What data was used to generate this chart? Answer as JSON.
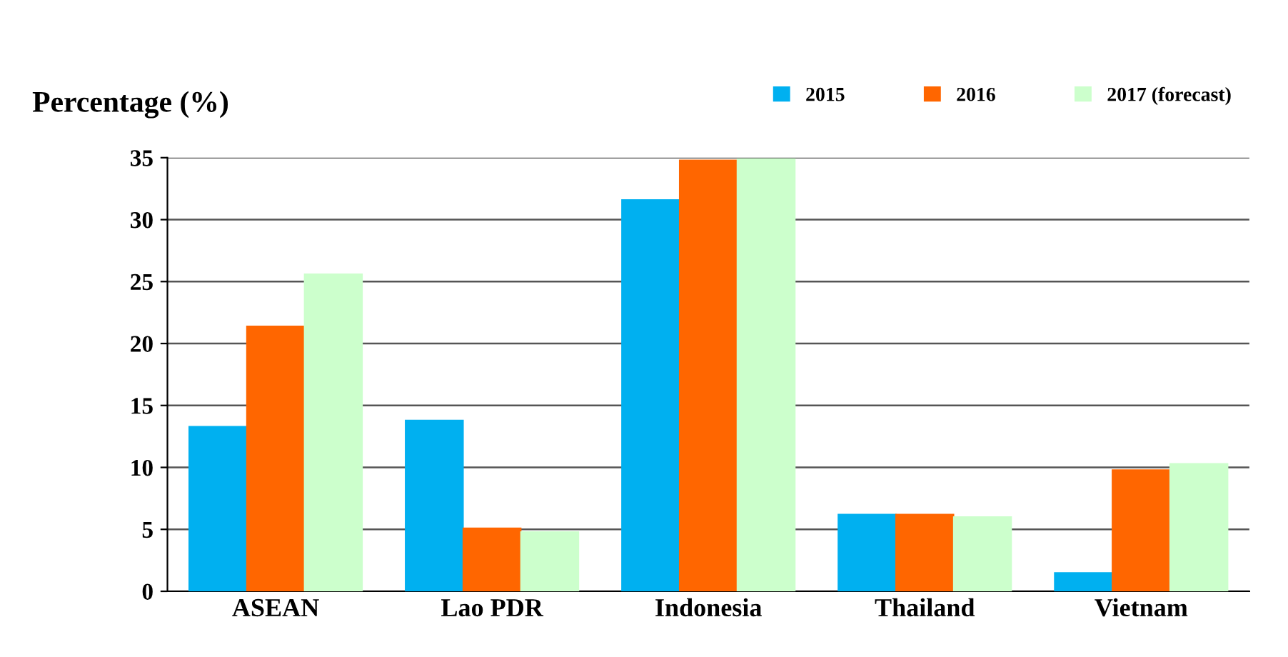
{
  "chart_data": {
    "type": "bar",
    "ylabel": "Percentage (%)",
    "categories": [
      "ASEAN",
      "Lao PDR",
      "Indonesia",
      "Thailand",
      "Vietnam"
    ],
    "series": [
      {
        "name": "2015",
        "color": "#00b0f0",
        "values": [
          13.3,
          13.8,
          31.6,
          6.2,
          1.5
        ]
      },
      {
        "name": "2016",
        "color": "#ff6600",
        "values": [
          21.4,
          5.1,
          34.8,
          6.2,
          9.8
        ]
      },
      {
        "name": "2017 (forecast)",
        "color": "#ccffcc",
        "values": [
          25.6,
          4.8,
          34.9,
          6.0,
          10.3
        ]
      }
    ],
    "ylim": [
      0,
      35
    ],
    "yticks": [
      0,
      5,
      10,
      15,
      20,
      25,
      30,
      35
    ],
    "grid": "y",
    "legend": "top right"
  }
}
